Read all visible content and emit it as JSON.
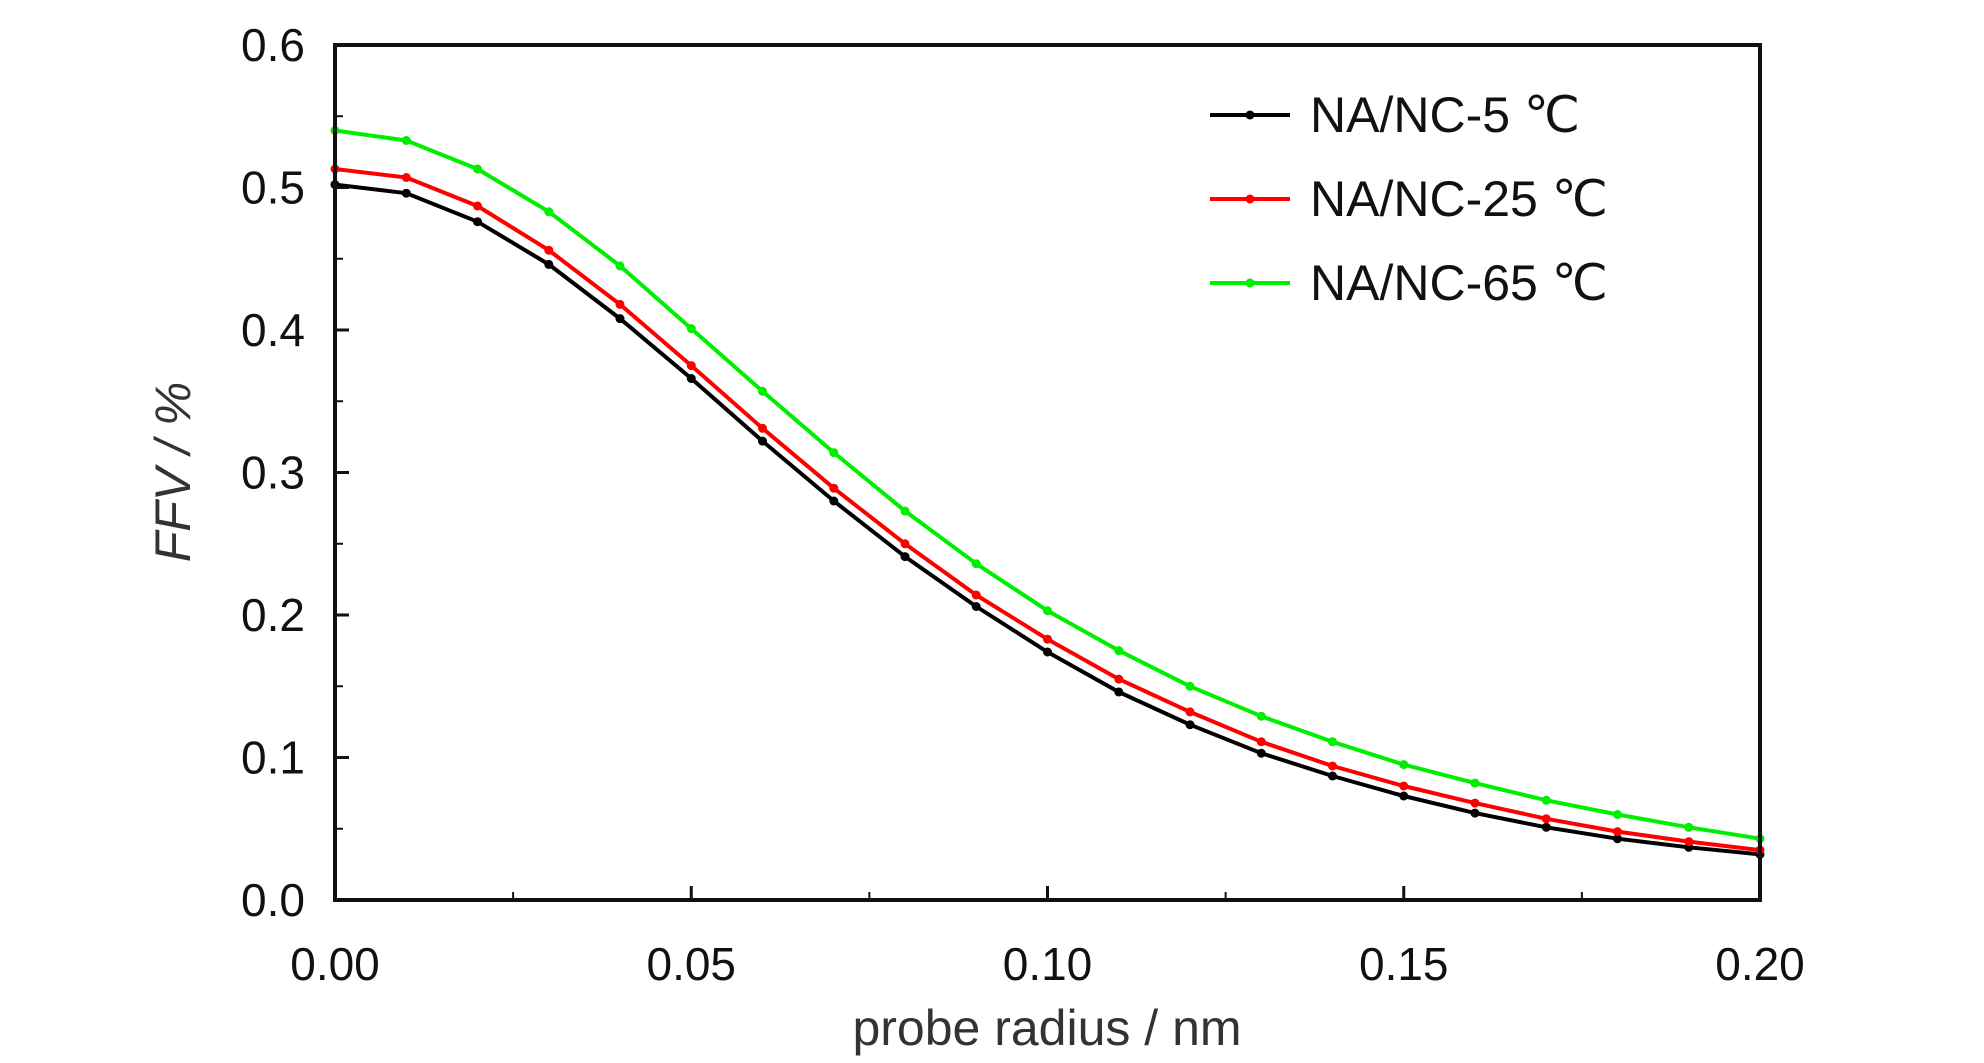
{
  "chart_data": {
    "type": "line",
    "xlabel": "probe radius / nm",
    "ylabel": "FFV / %",
    "xlim": [
      0.0,
      0.2
    ],
    "ylim": [
      0.0,
      0.6
    ],
    "xticks": [
      "0.00",
      "0.05",
      "0.10",
      "0.15",
      "0.20"
    ],
    "yticks": [
      "0.0",
      "0.1",
      "0.2",
      "0.3",
      "0.4",
      "0.5",
      "0.6"
    ],
    "grid": false,
    "legend_position": "top-right",
    "x": [
      0.0,
      0.01,
      0.02,
      0.03,
      0.04,
      0.05,
      0.06,
      0.07,
      0.08,
      0.09,
      0.1,
      0.11,
      0.12,
      0.13,
      0.14,
      0.15,
      0.16,
      0.17,
      0.18,
      0.19,
      0.2
    ],
    "series": [
      {
        "name": "NA/NC-5 ℃",
        "color": "#000000",
        "values": [
          0.502,
          0.496,
          0.476,
          0.446,
          0.408,
          0.366,
          0.322,
          0.28,
          0.241,
          0.206,
          0.174,
          0.146,
          0.123,
          0.103,
          0.087,
          0.073,
          0.061,
          0.051,
          0.043,
          0.037,
          0.032
        ]
      },
      {
        "name": "NA/NC-25 ℃",
        "color": "#ff0000",
        "values": [
          0.513,
          0.507,
          0.487,
          0.456,
          0.418,
          0.375,
          0.331,
          0.289,
          0.25,
          0.214,
          0.183,
          0.155,
          0.132,
          0.111,
          0.094,
          0.08,
          0.068,
          0.057,
          0.048,
          0.041,
          0.035
        ]
      },
      {
        "name": "NA/NC-65 ℃",
        "color": "#00ee00",
        "values": [
          0.54,
          0.533,
          0.513,
          0.483,
          0.445,
          0.401,
          0.357,
          0.314,
          0.273,
          0.236,
          0.203,
          0.175,
          0.15,
          0.129,
          0.111,
          0.095,
          0.082,
          0.07,
          0.06,
          0.051,
          0.043
        ]
      }
    ]
  }
}
